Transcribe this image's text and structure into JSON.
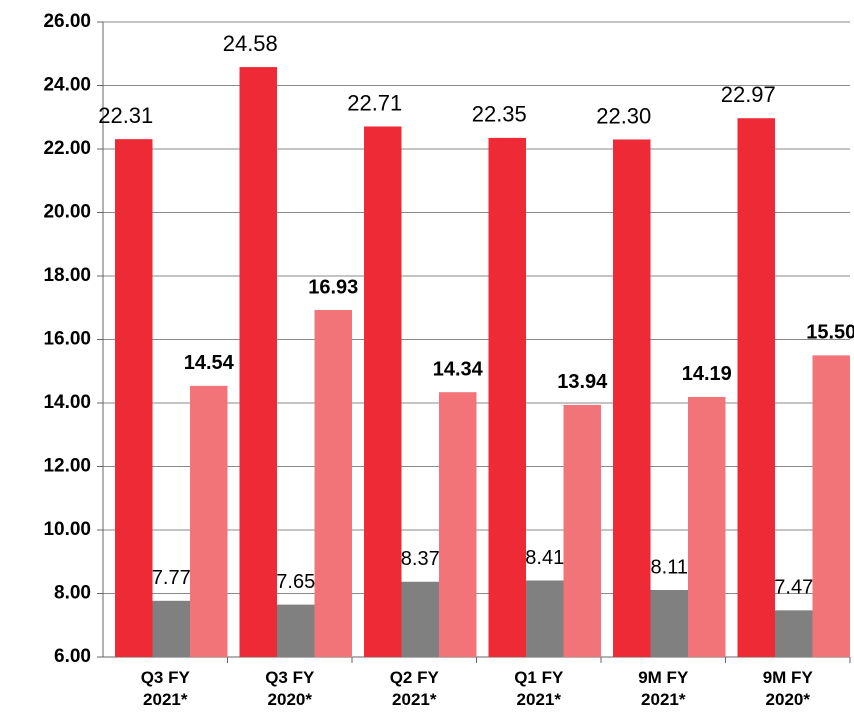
{
  "chart_data": {
    "type": "bar",
    "categories": [
      "Q3 FY 2021*",
      "Q3 FY 2020*",
      "Q2 FY 2021*",
      "Q1 FY 2021*",
      "9M FY 2021*",
      "9M FY 2020*"
    ],
    "series": [
      {
        "color": "#ee2a36",
        "values": [
          22.31,
          24.58,
          22.71,
          22.35,
          22.3,
          22.97
        ],
        "value_labels": [
          "22.31",
          "24.58",
          "22.71",
          "22.35",
          "22.30",
          "22.97"
        ]
      },
      {
        "color": "#808080",
        "values": [
          7.77,
          7.65,
          8.37,
          8.41,
          8.11,
          7.47
        ],
        "value_labels": [
          "7.77",
          "7.65",
          "8.37",
          "8.41",
          "8.11",
          "7.47"
        ]
      },
      {
        "color": "#f27479",
        "values": [
          14.54,
          16.93,
          14.34,
          13.94,
          14.19,
          15.5
        ],
        "value_labels": [
          "14.54",
          "16.93",
          "14.34",
          "13.94",
          "14.19",
          "15.50"
        ]
      }
    ],
    "ylim": [
      6,
      26
    ],
    "yticks": [
      {
        "value": 6,
        "label": "6.00"
      },
      {
        "value": 8,
        "label": "8.00"
      },
      {
        "value": 10,
        "label": "10.00"
      },
      {
        "value": 12,
        "label": "12.00"
      },
      {
        "value": 14,
        "label": "14.00"
      },
      {
        "value": 16,
        "label": "16.00"
      },
      {
        "value": 18,
        "label": "18.00"
      },
      {
        "value": 20,
        "label": "20.00"
      },
      {
        "value": 22,
        "label": "22.00"
      },
      {
        "value": 24,
        "label": "24.00"
      },
      {
        "value": 26,
        "label": "26.00"
      }
    ],
    "grid": true
  }
}
